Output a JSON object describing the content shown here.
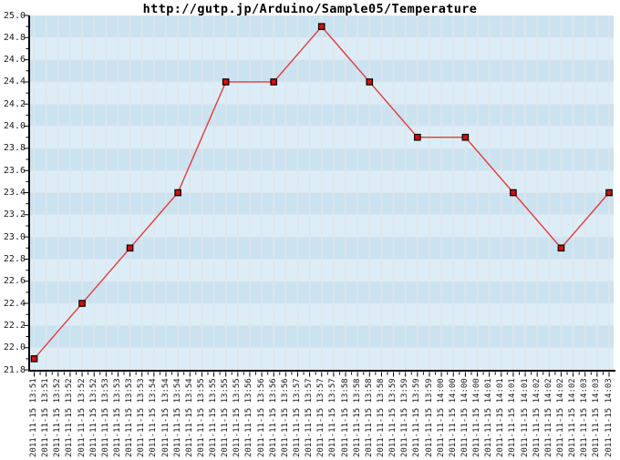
{
  "page": {
    "background": "#ffffff"
  },
  "chart_data": {
    "type": "line",
    "title": "http://gutp.jp/Arduino/Sample05/Temperature",
    "xlabel": "",
    "ylabel": "",
    "ylim": [
      21.8,
      25.0
    ],
    "y_major_step": 0.2,
    "y_minor_step": 0.1,
    "grid": "on",
    "legend_position": "none",
    "y_tick_labels": [
      "25.0",
      "24.8",
      "24.6",
      "24.4",
      "24.2",
      "24.0",
      "23.8",
      "23.6",
      "23.4",
      "23.2",
      "23.0",
      "22.8",
      "22.6",
      "22.4",
      "22.2",
      "22.0",
      "21.8"
    ],
    "x_tick_labels": [
      "2011-11-15 13:51",
      "2011-11-15 13:51",
      "2011-11-15 13:52",
      "2011-11-15 13:52",
      "2011-11-15 13:52",
      "2011-11-15 13:52",
      "2011-11-15 13:53",
      "2011-11-15 13:53",
      "2011-11-15 13:53",
      "2011-11-15 13:53",
      "2011-11-15 13:54",
      "2011-11-15 13:54",
      "2011-11-15 13:54",
      "2011-11-15 13:54",
      "2011-11-15 13:55",
      "2011-11-15 13:55",
      "2011-11-15 13:55",
      "2011-11-15 13:55",
      "2011-11-15 13:56",
      "2011-11-15 13:56",
      "2011-11-15 13:56",
      "2011-11-15 13:56",
      "2011-11-15 13:57",
      "2011-11-15 13:57",
      "2011-11-15 13:57",
      "2011-11-15 13:57",
      "2011-11-15 13:58",
      "2011-11-15 13:58",
      "2011-11-15 13:58",
      "2011-11-15 13:58",
      "2011-11-15 13:59",
      "2011-11-15 13:59",
      "2011-11-15 13:59",
      "2011-11-15 13:59",
      "2011-11-15 14:00",
      "2011-11-15 14:00",
      "2011-11-15 14:00",
      "2011-11-15 14:00",
      "2011-11-15 14:01",
      "2011-11-15 14:01",
      "2011-11-15 14:01",
      "2011-11-15 14:01",
      "2011-11-15 14:02",
      "2011-11-15 14:02",
      "2011-11-15 14:02",
      "2011-11-15 14:02",
      "2011-11-15 14:03",
      "2011-11-15 14:03",
      "2011-11-15 14:03"
    ],
    "series": [
      {
        "name": "Temperature",
        "marker": "square",
        "line_color": "#e23b3b",
        "marker_fill": "#cc1111",
        "marker_border": "#000000",
        "tick_indices": [
          0,
          4,
          8,
          12,
          16,
          20,
          24,
          28,
          32,
          36,
          40,
          44,
          48
        ],
        "point_labels": [
          "2011-11-15 13:51",
          "2011-11-15 13:52",
          "2011-11-15 13:53",
          "2011-11-15 13:54",
          "2011-11-15 13:55",
          "2011-11-15 13:56",
          "2011-11-15 13:57",
          "2011-11-15 13:58",
          "2011-11-15 13:59",
          "2011-11-15 14:00",
          "2011-11-15 14:01",
          "2011-11-15 14:02",
          "2011-11-15 14:03"
        ],
        "values": [
          21.9,
          22.4,
          22.9,
          23.4,
          24.4,
          24.4,
          24.9,
          24.4,
          23.9,
          23.9,
          23.4,
          22.9,
          23.4
        ]
      }
    ],
    "style": {
      "stripe_dark": "#cbe2f1",
      "stripe_light": "#dcedf7",
      "grid_color": "#dfe6ea",
      "axis_color": "#000000",
      "label_color": "#1a1a1a"
    }
  }
}
